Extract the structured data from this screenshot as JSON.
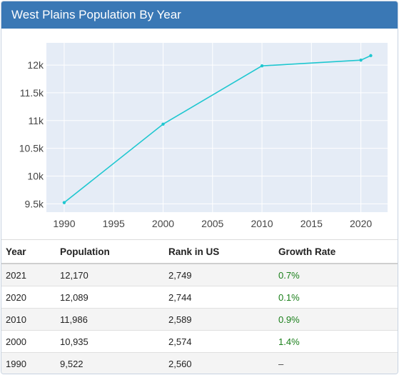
{
  "header": {
    "title": "West Plains Population By Year"
  },
  "chart_data": {
    "type": "line",
    "x": [
      1990,
      2000,
      2010,
      2020,
      2021
    ],
    "series": [
      {
        "values": [
          9522,
          10935,
          11986,
          12089,
          12170
        ],
        "color": "#1fc7d0"
      }
    ],
    "xlim": [
      1988.2,
      2022.7
    ],
    "ylim": [
      9350,
      12400
    ],
    "xticks": [
      1990,
      1995,
      2000,
      2005,
      2010,
      2015,
      2020
    ],
    "yticks": [
      9500,
      10000,
      10500,
      11000,
      11500,
      12000
    ],
    "xtick_labels": [
      "1990",
      "1995",
      "2000",
      "2005",
      "2010",
      "2015",
      "2020"
    ],
    "ytick_labels": [
      "9.5k",
      "10k",
      "10.5k",
      "11k",
      "11.5k",
      "12k"
    ],
    "grid": true,
    "plot_background": "#e5ecf6"
  },
  "table": {
    "headers": [
      "Year",
      "Population",
      "Rank in US",
      "Growth Rate"
    ],
    "rows": [
      {
        "year": "2021",
        "population": "12,170",
        "rank": "2,749",
        "growth": "0.7%"
      },
      {
        "year": "2020",
        "population": "12,089",
        "rank": "2,744",
        "growth": "0.1%"
      },
      {
        "year": "2010",
        "population": "11,986",
        "rank": "2,589",
        "growth": "0.9%"
      },
      {
        "year": "2000",
        "population": "10,935",
        "rank": "2,574",
        "growth": "1.4%"
      },
      {
        "year": "1990",
        "population": "9,522",
        "rank": "2,560",
        "growth": "–"
      }
    ]
  },
  "colors": {
    "header_bg": "#3a78b5",
    "growth_positive": "#1a7f1a"
  }
}
